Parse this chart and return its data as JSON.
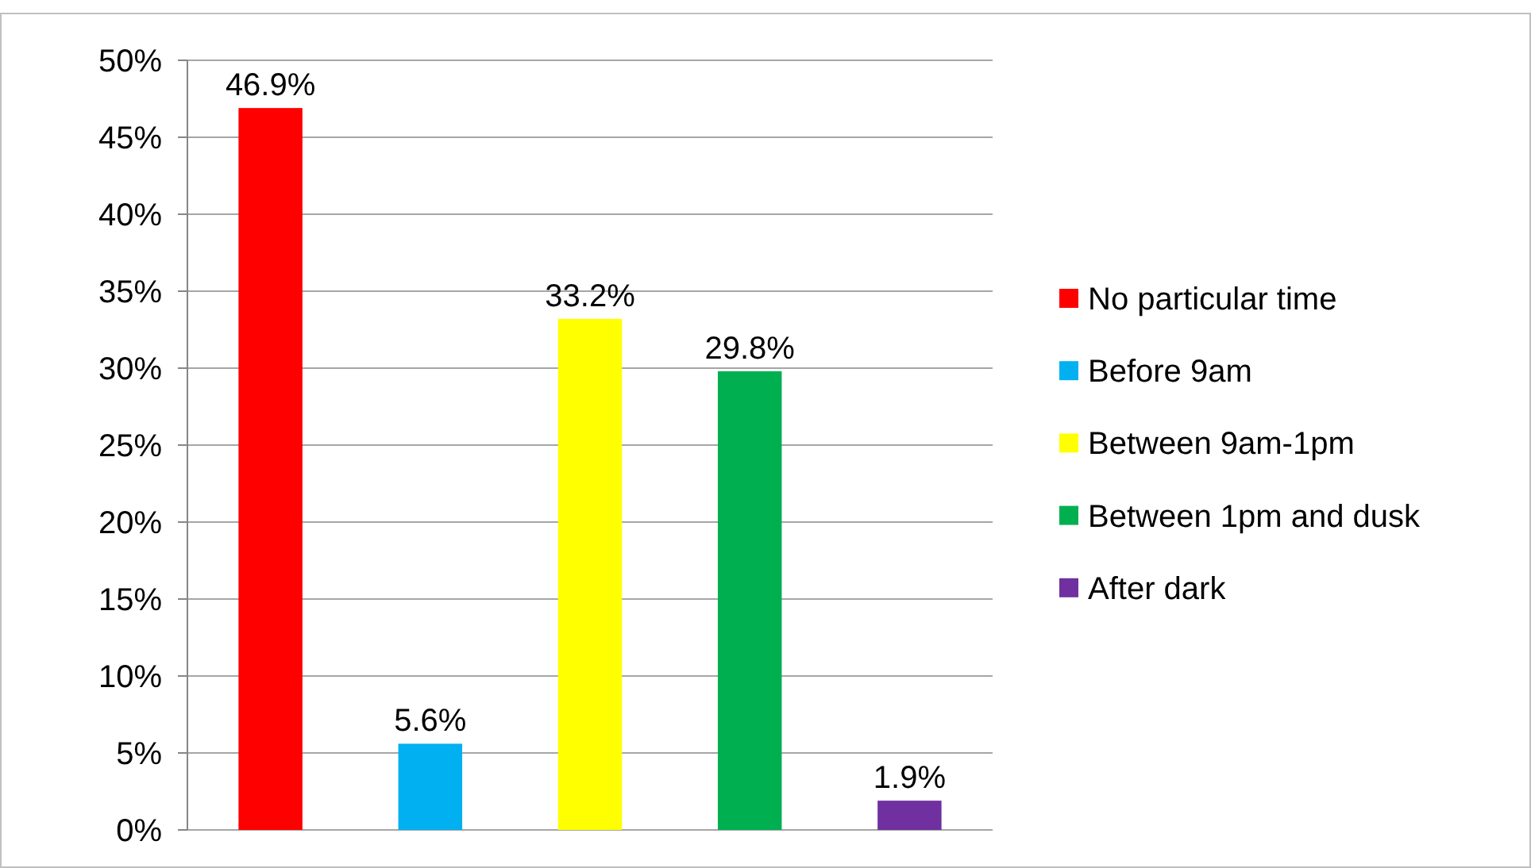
{
  "chart_data": {
    "type": "bar",
    "categories": [
      null
    ],
    "series": [
      {
        "name": "No particular time",
        "color": "#ff0000",
        "values": [
          46.9
        ],
        "value_labels": [
          "46.9%"
        ]
      },
      {
        "name": "Before 9am",
        "color": "#00b0f0",
        "values": [
          5.6
        ],
        "value_labels": [
          "5.6%"
        ]
      },
      {
        "name": "Between 9am-1pm",
        "color": "#ffff00",
        "values": [
          33.2
        ],
        "value_labels": [
          "33.2%"
        ]
      },
      {
        "name": "Between 1pm and dusk",
        "color": "#00b050",
        "values": [
          29.8
        ],
        "value_labels": [
          "29.8%"
        ]
      },
      {
        "name": "After dark",
        "color": "#7030a0",
        "values": [
          1.9
        ],
        "value_labels": [
          "1.9%"
        ]
      }
    ],
    "ylim": [
      0,
      50
    ],
    "yticks": [
      {
        "value": 0,
        "label": "0%"
      },
      {
        "value": 5,
        "label": "5%"
      },
      {
        "value": 10,
        "label": "10%"
      },
      {
        "value": 15,
        "label": "15%"
      },
      {
        "value": 20,
        "label": "20%"
      },
      {
        "value": 25,
        "label": "25%"
      },
      {
        "value": 30,
        "label": "30%"
      },
      {
        "value": 35,
        "label": "35%"
      },
      {
        "value": 40,
        "label": "40%"
      },
      {
        "value": 45,
        "label": "45%"
      },
      {
        "value": 50,
        "label": "50%"
      }
    ],
    "grid": "y",
    "legend": "right"
  }
}
